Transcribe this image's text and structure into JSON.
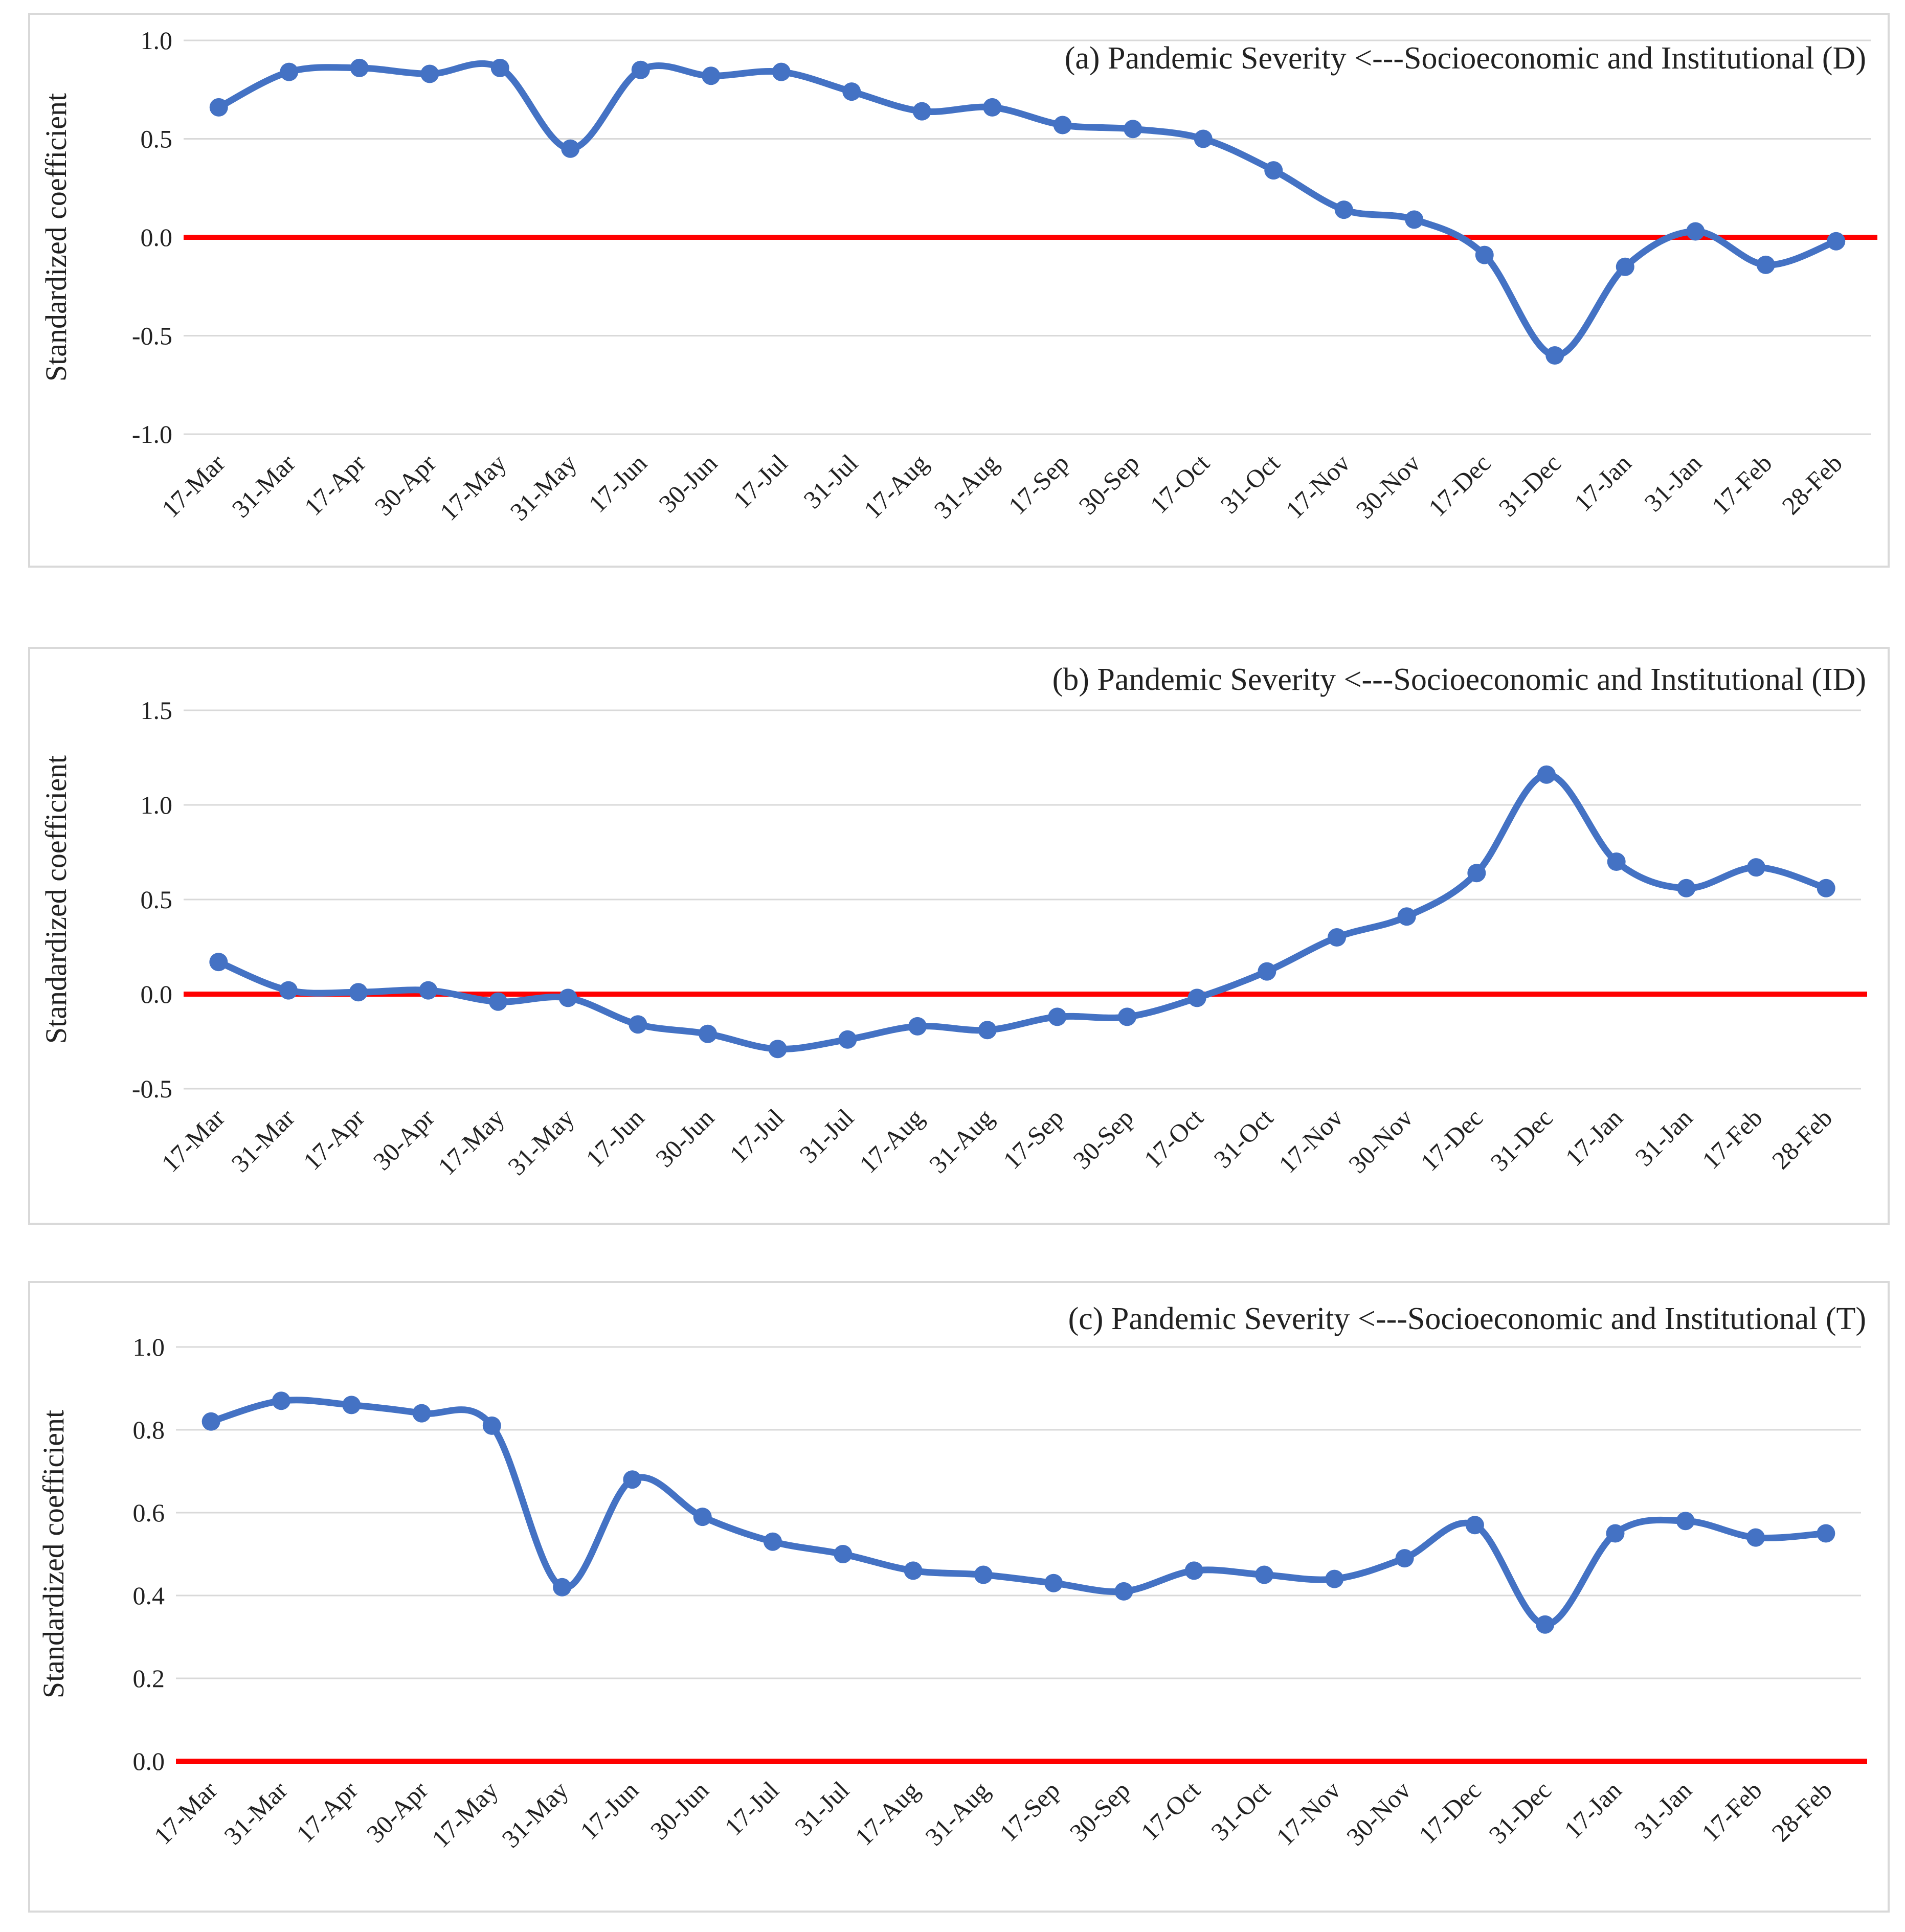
{
  "chart_data": [
    {
      "type": "line",
      "title": "(a) Pandemic Severity <---Socioeconomic and Institutional (D)",
      "ylabel": "Standardized coefficient",
      "xlabel": "",
      "categories": [
        "17-Mar",
        "31-Mar",
        "17-Apr",
        "30-Apr",
        "17-May",
        "31-May",
        "17-Jun",
        "30-Jun",
        "17-Jul",
        "31-Jul",
        "17-Aug",
        "31-Aug",
        "17-Sep",
        "30-Sep",
        "17-Oct",
        "31-Oct",
        "17-Nov",
        "30-Nov",
        "17-Dec",
        "31-Dec",
        "17-Jan",
        "31-Jan",
        "17-Feb",
        "28-Feb"
      ],
      "values": [
        0.66,
        0.84,
        0.86,
        0.83,
        0.86,
        0.45,
        0.85,
        0.82,
        0.84,
        0.74,
        0.64,
        0.66,
        0.57,
        0.55,
        0.5,
        0.34,
        0.14,
        0.09,
        -0.09,
        -0.6,
        -0.15,
        0.03,
        -0.14,
        -0.02
      ],
      "ylim": [
        -1.0,
        1.0
      ],
      "yticks": [
        -1.0,
        -0.5,
        0.0,
        0.5,
        1.0
      ],
      "ytick_labels": [
        "-1.0",
        "-0.5",
        "0.0",
        "0.5",
        "1.0"
      ],
      "reference_line": 0.0,
      "grid": true
    },
    {
      "type": "line",
      "title": "(b) Pandemic Severity <---Socioeconomic and Institutional (ID)",
      "ylabel": "Standardized coefficient",
      "xlabel": "",
      "categories": [
        "17-Mar",
        "31-Mar",
        "17-Apr",
        "30-Apr",
        "17-May",
        "31-May",
        "17-Jun",
        "30-Jun",
        "17-Jul",
        "31-Jul",
        "17-Aug",
        "31-Aug",
        "17-Sep",
        "30-Sep",
        "17-Oct",
        "31-Oct",
        "17-Nov",
        "30-Nov",
        "17-Dec",
        "31-Dec",
        "17-Jan",
        "31-Jan",
        "17-Feb",
        "28-Feb"
      ],
      "values": [
        0.17,
        0.02,
        0.01,
        0.02,
        -0.04,
        -0.02,
        -0.16,
        -0.21,
        -0.29,
        -0.24,
        -0.17,
        -0.19,
        -0.12,
        -0.12,
        -0.02,
        0.12,
        0.3,
        0.41,
        0.64,
        1.16,
        0.7,
        0.56,
        0.67,
        0.56
      ],
      "ylim": [
        -0.5,
        1.5
      ],
      "yticks": [
        -0.5,
        0.0,
        0.5,
        1.0,
        1.5
      ],
      "ytick_labels": [
        "-0.5",
        "0.0",
        "0.5",
        "1.0",
        "1.5"
      ],
      "reference_line": 0.0,
      "grid": true
    },
    {
      "type": "line",
      "title": "(c) Pandemic Severity <---Socioeconomic and Institutional (T)",
      "ylabel": "Standardized coefficient",
      "xlabel": "",
      "categories": [
        "17-Mar",
        "31-Mar",
        "17-Apr",
        "30-Apr",
        "17-May",
        "31-May",
        "17-Jun",
        "30-Jun",
        "17-Jul",
        "31-Jul",
        "17-Aug",
        "31-Aug",
        "17-Sep",
        "30-Sep",
        "17-Oct",
        "31-Oct",
        "17-Nov",
        "30-Nov",
        "17-Dec",
        "31-Dec",
        "17-Jan",
        "31-Jan",
        "17-Feb",
        "28-Feb"
      ],
      "values": [
        0.82,
        0.87,
        0.86,
        0.84,
        0.81,
        0.42,
        0.68,
        0.59,
        0.53,
        0.5,
        0.46,
        0.45,
        0.43,
        0.41,
        0.46,
        0.45,
        0.44,
        0.49,
        0.57,
        0.33,
        0.55,
        0.58,
        0.54,
        0.55
      ],
      "ylim": [
        0.0,
        1.0
      ],
      "yticks": [
        0.0,
        0.2,
        0.4,
        0.6,
        0.8,
        1.0
      ],
      "ytick_labels": [
        "0.0",
        "0.2",
        "0.4",
        "0.6",
        "0.8",
        "1.0"
      ],
      "reference_line": 0.0,
      "grid": true
    }
  ],
  "colors": {
    "series": "#4472C4",
    "reference_line": "#ff0000",
    "grid": "#d9d9d9",
    "border": "#d9d9d9"
  }
}
